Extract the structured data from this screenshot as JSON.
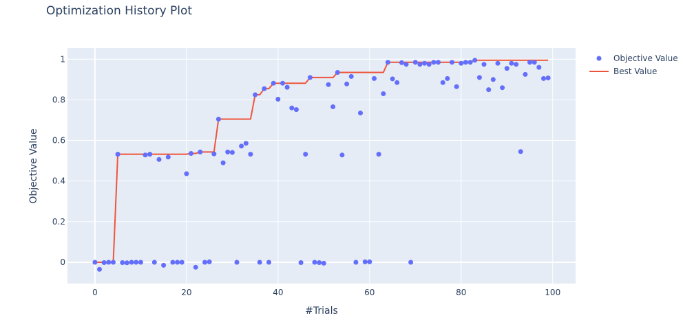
{
  "chart_data": {
    "type": "scatter",
    "title": "Optimization History Plot",
    "xlabel": "#Trials",
    "ylabel": "Objective Value",
    "xlim": [
      -6,
      105
    ],
    "ylim": [
      -0.105,
      1.055
    ],
    "xticks": [
      0,
      20,
      40,
      60,
      80,
      100
    ],
    "yticks": [
      0,
      0.2,
      0.4,
      0.6,
      0.8,
      1
    ],
    "ytick_labels": [
      "0",
      "0.2",
      "0.4",
      "0.6",
      "0.8",
      "1"
    ],
    "grid": true,
    "legend_position": "top-right",
    "series": [
      {
        "name": "Objective Value",
        "kind": "markers",
        "color": "#636efa",
        "x": [
          0,
          1,
          2,
          3,
          4,
          5,
          6,
          7,
          8,
          9,
          10,
          11,
          12,
          13,
          14,
          15,
          16,
          17,
          18,
          19,
          20,
          21,
          22,
          23,
          24,
          25,
          26,
          27,
          28,
          29,
          30,
          31,
          32,
          33,
          34,
          35,
          36,
          37,
          38,
          39,
          40,
          41,
          42,
          43,
          44,
          45,
          46,
          47,
          48,
          49,
          50,
          51,
          52,
          53,
          54,
          55,
          56,
          57,
          58,
          59,
          60,
          61,
          62,
          63,
          64,
          65,
          66,
          67,
          68,
          69,
          70,
          71,
          72,
          73,
          74,
          75,
          76,
          77,
          78,
          79,
          80,
          81,
          82,
          83,
          84,
          85,
          86,
          87,
          88,
          89,
          90,
          91,
          92,
          93,
          94,
          95,
          96,
          97,
          98,
          99
        ],
        "y": [
          0,
          -0.035,
          -0.002,
          0,
          0,
          0.532,
          -0.002,
          -0.003,
          0,
          0,
          0,
          0.528,
          0.532,
          0,
          0.506,
          -0.015,
          0.518,
          0,
          0,
          0,
          0.436,
          0.536,
          -0.025,
          0.543,
          0,
          0.002,
          0.534,
          0.705,
          0.49,
          0.543,
          0.541,
          0,
          0.572,
          0.586,
          0.532,
          0.825,
          0,
          0.855,
          0,
          0.882,
          0.803,
          0.882,
          0.862,
          0.76,
          0.752,
          -0.002,
          0.532,
          0.91,
          0,
          -0.002,
          -0.005,
          0.875,
          0.766,
          0.935,
          0.528,
          0.878,
          0.915,
          0,
          0.735,
          0.002,
          0.002,
          0.905,
          0.532,
          0.83,
          0.985,
          0.903,
          0.885,
          0.983,
          0.975,
          0,
          0.985,
          0.975,
          0.98,
          0.975,
          0.985,
          0.985,
          0.885,
          0.905,
          0.985,
          0.865,
          0.98,
          0.985,
          0.985,
          0.995,
          0.91,
          0.975,
          0.85,
          0.9,
          0.98,
          0.86,
          0.955,
          0.98,
          0.975,
          0.545,
          0.925,
          0.985,
          0.985,
          0.96,
          0.905,
          0.908
        ]
      },
      {
        "name": "Best Value",
        "kind": "line",
        "color": "#ef553b",
        "x": [
          0,
          1,
          2,
          3,
          4,
          5,
          6,
          7,
          8,
          9,
          10,
          11,
          12,
          13,
          14,
          15,
          16,
          17,
          18,
          19,
          20,
          21,
          22,
          23,
          24,
          25,
          26,
          27,
          28,
          29,
          30,
          31,
          32,
          33,
          34,
          35,
          36,
          37,
          38,
          39,
          40,
          41,
          42,
          43,
          44,
          45,
          46,
          47,
          48,
          49,
          50,
          51,
          52,
          53,
          54,
          55,
          56,
          57,
          58,
          59,
          60,
          61,
          62,
          63,
          64,
          65,
          66,
          67,
          68,
          69,
          70,
          71,
          72,
          73,
          74,
          75,
          76,
          77,
          78,
          79,
          80,
          81,
          82,
          83,
          84,
          85,
          86,
          87,
          88,
          89,
          90,
          91,
          92,
          93,
          94,
          95,
          96,
          97,
          98,
          99
        ],
        "y": [
          0,
          0,
          0,
          0,
          0,
          0.532,
          0.532,
          0.532,
          0.532,
          0.532,
          0.532,
          0.532,
          0.532,
          0.532,
          0.532,
          0.532,
          0.532,
          0.532,
          0.532,
          0.532,
          0.532,
          0.536,
          0.536,
          0.543,
          0.543,
          0.543,
          0.543,
          0.705,
          0.705,
          0.705,
          0.705,
          0.705,
          0.705,
          0.705,
          0.705,
          0.825,
          0.825,
          0.855,
          0.855,
          0.882,
          0.882,
          0.882,
          0.882,
          0.882,
          0.882,
          0.882,
          0.882,
          0.91,
          0.91,
          0.91,
          0.91,
          0.91,
          0.91,
          0.935,
          0.935,
          0.935,
          0.935,
          0.935,
          0.935,
          0.935,
          0.935,
          0.935,
          0.935,
          0.935,
          0.985,
          0.985,
          0.985,
          0.985,
          0.985,
          0.985,
          0.985,
          0.985,
          0.985,
          0.985,
          0.985,
          0.985,
          0.985,
          0.985,
          0.985,
          0.985,
          0.985,
          0.985,
          0.985,
          0.995,
          0.995,
          0.995,
          0.995,
          0.995,
          0.995,
          0.995,
          0.995,
          0.995,
          0.995,
          0.995,
          0.995,
          0.995,
          0.995,
          0.995,
          0.995,
          0.995
        ]
      }
    ]
  }
}
